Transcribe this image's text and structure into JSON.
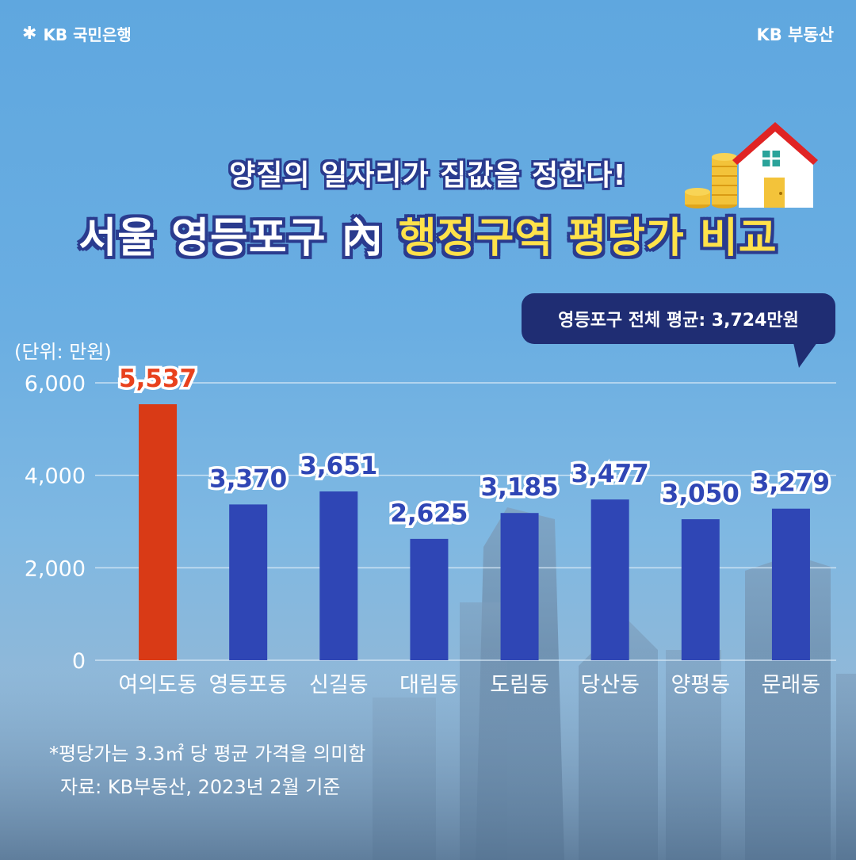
{
  "brand": {
    "bank": "KB 국민은행",
    "service": "KB 부동산"
  },
  "subtitle": "양질의 일자리가 집값을 정한다!",
  "title": {
    "part1": "서울 영등포구 內",
    "part2": "행정구역 평당가 비교"
  },
  "callout": "영등포구 전체 평균: 3,724만원",
  "unit": "(단위: 만원)",
  "footnote": {
    "line1": "*평당가는 3.3㎡ 당 평균 가격을 의미함",
    "line2": "자료: KB부동산, 2023년 2월 기준"
  },
  "colors": {
    "highlight_bar": "#d93a16",
    "bar": "#2f46b5",
    "label_highlight": "#e8411d",
    "label": "#2f46b5",
    "title_highlight": "#ffe24a"
  },
  "chart_data": {
    "type": "bar",
    "categories": [
      "여의도동",
      "영등포동",
      "신길동",
      "대림동",
      "도림동",
      "당산동",
      "양평동",
      "문래동"
    ],
    "values": [
      5537,
      3370,
      3651,
      2625,
      3185,
      3477,
      3050,
      3279
    ],
    "value_labels": [
      "5,537",
      "3,370",
      "3,651",
      "2,625",
      "3,185",
      "3,477",
      "3,050",
      "3,279"
    ],
    "highlight_index": 0,
    "ylim": [
      0,
      6000
    ],
    "yticks": [
      0,
      2000,
      4000,
      6000
    ],
    "ytick_labels": [
      "0",
      "2,000",
      "4,000",
      "6,000"
    ],
    "grid": true
  }
}
